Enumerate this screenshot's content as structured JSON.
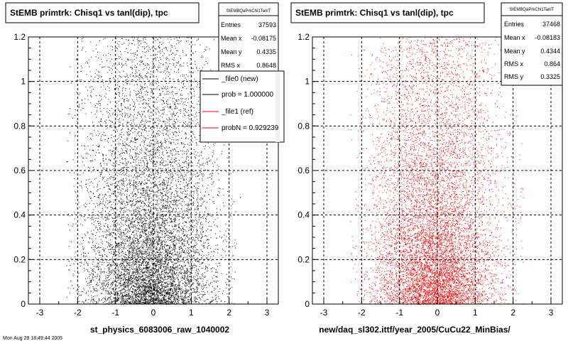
{
  "canvas": {
    "background": "#ffffff"
  },
  "panels": [
    {
      "id": "left",
      "title": "StEMB primtrk: Chisq1 vs tanl(dip), tpc",
      "xlabel": "st_physics_6083006_raw_1040002",
      "marker_color": "#000000",
      "stats": {
        "name": "StEMBQaPrkChi1TanlT",
        "rows": [
          {
            "label": "Entries",
            "value": "37593"
          },
          {
            "label": "Mean x",
            "value": "-0.08175"
          },
          {
            "label": "Mean y",
            "value": "0.4335"
          },
          {
            "label": "RMS x",
            "value": "0.8648"
          }
        ]
      },
      "legend": {
        "entries": [
          {
            "label": "_file0 (new)",
            "color": "#000000"
          },
          {
            "label": "prob = 1.000000",
            "color": "#000000"
          },
          {
            "label": "_file1 (ref)",
            "color": "#ff0000"
          },
          {
            "label": "probN = 0.929239",
            "color": "#ff0000"
          }
        ]
      }
    },
    {
      "id": "right",
      "title": "StEMB primtrk: Chisq1 vs tanl(dip), tpc",
      "xlabel": "new/daq_sl302.ittf/year_2005/CuCu22_MinBias/",
      "marker_color": "#ff0000",
      "stats": {
        "name": "StEMBQaPrkChi1TanlT",
        "rows": [
          {
            "label": "Entries",
            "value": "37468"
          },
          {
            "label": "Mean x",
            "value": "-0.08183"
          },
          {
            "label": "Mean y",
            "value": "0.4344"
          },
          {
            "label": "RMS x",
            "value": "0.864"
          },
          {
            "label": "RMS y",
            "value": "0.3325"
          }
        ]
      }
    }
  ],
  "footer_text": "Mon Aug 29 18:49:44 2005",
  "chart_data": [
    {
      "type": "scatter",
      "title": "StEMB primtrk: Chisq1 vs tanl(dip), tpc",
      "xlabel": "st_physics_6083006_raw_1040002",
      "ylabel": "",
      "xlim": [
        -3.3,
        3.3
      ],
      "ylim": [
        0,
        1.2
      ],
      "x_ticks": [
        -3,
        -2,
        -1,
        0,
        1,
        2,
        3
      ],
      "y_ticks": [
        0,
        0.2,
        0.4,
        0.6,
        0.8,
        1,
        1.2
      ],
      "grid": true,
      "color": "#000000",
      "entries": 37593,
      "mean_x": -0.08175,
      "mean_y": 0.4335,
      "rms_x": 0.8648,
      "legend_placement": "top-right",
      "series": [
        {
          "name": "_file0 (new)",
          "entries": 37593
        }
      ]
    },
    {
      "type": "scatter",
      "title": "StEMB primtrk: Chisq1 vs tanl(dip), tpc",
      "xlabel": "new/daq_sl302.ittf/year_2005/CuCu22_MinBias/",
      "ylabel": "",
      "xlim": [
        -3.3,
        3.3
      ],
      "ylim": [
        0,
        1.2
      ],
      "x_ticks": [
        -3,
        -2,
        -1,
        0,
        1,
        2,
        3
      ],
      "y_ticks": [
        0,
        0.2,
        0.4,
        0.6,
        0.8,
        1,
        1.2
      ],
      "grid": true,
      "color": "#ff0000",
      "entries": 37468,
      "mean_x": -0.08183,
      "mean_y": 0.4344,
      "rms_x": 0.864,
      "rms_y": 0.3325,
      "series": [
        {
          "name": "_file1 (ref)",
          "entries": 37468
        }
      ]
    }
  ]
}
